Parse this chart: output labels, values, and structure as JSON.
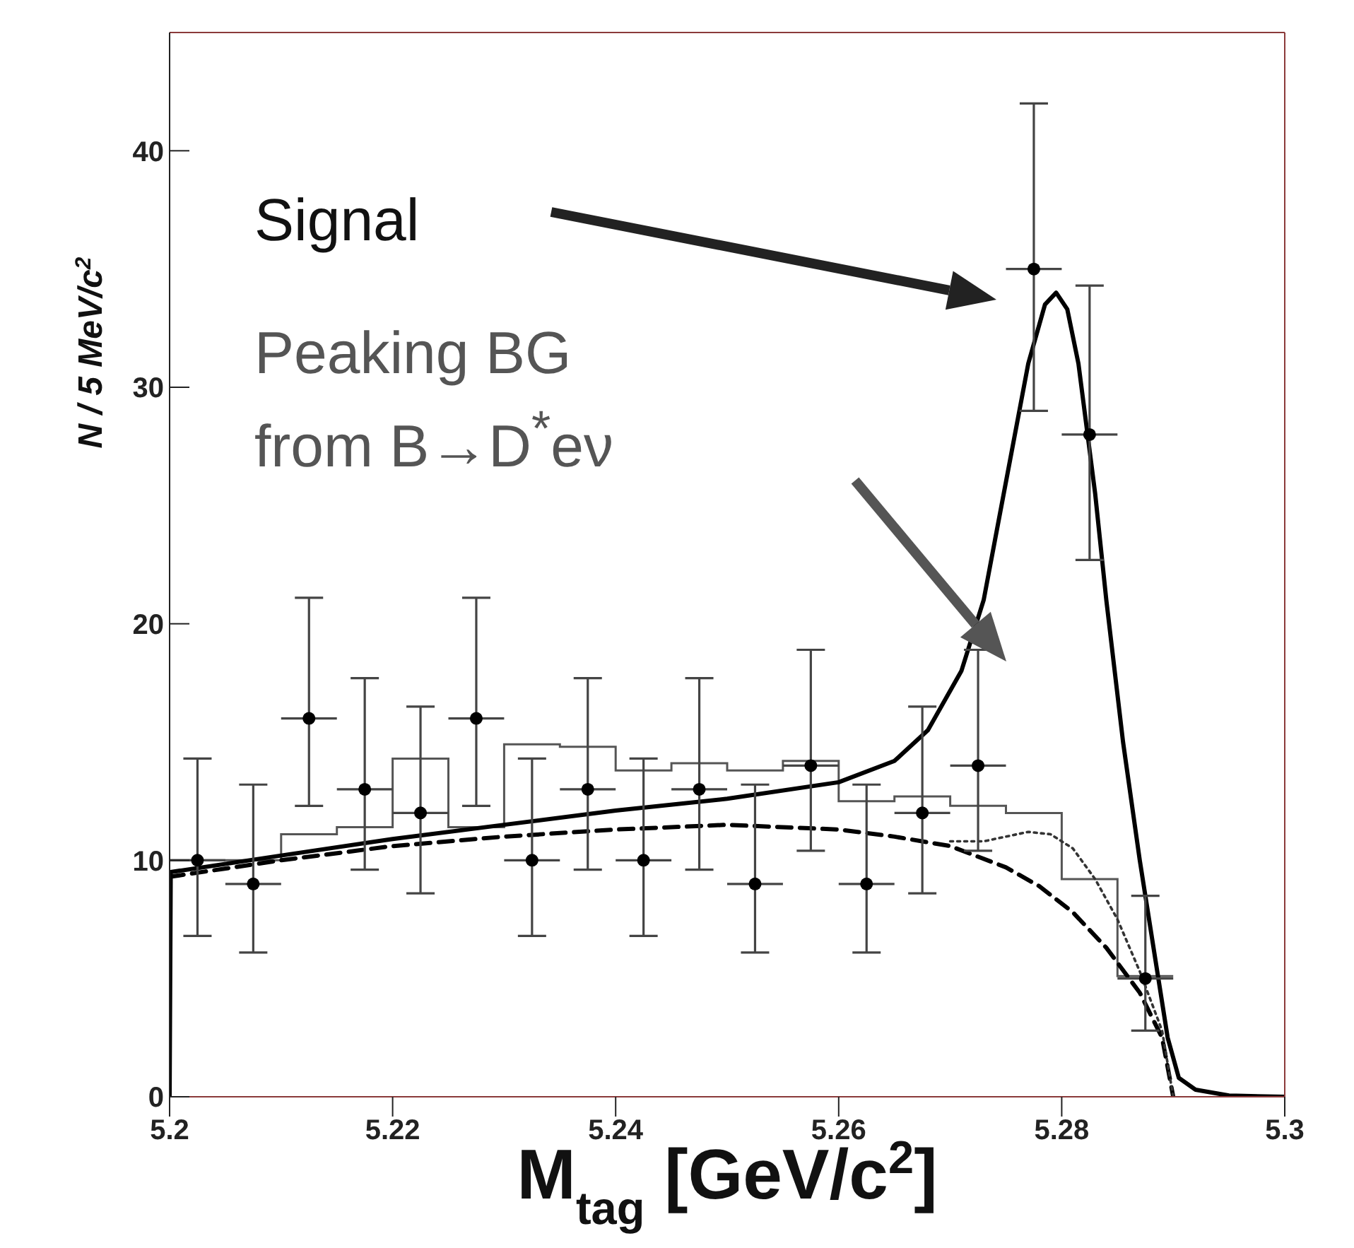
{
  "chart_data": {
    "type": "scatter",
    "xlabel": "M$_{tag}$ [GeV/c$^{2}$]",
    "ylabel": "N / 5 MeV/c$^{2}$",
    "xlim": [
      5.2,
      5.3
    ],
    "xticks": [
      5.2,
      5.22,
      5.24,
      5.26,
      5.28,
      5.3
    ],
    "ylim": [
      0,
      45
    ],
    "yticks": [
      0,
      10,
      20,
      30,
      40
    ],
    "grid": false,
    "annotations": [
      "Signal",
      "Peaking BG from B→D$^{*}$eν"
    ],
    "series": [
      {
        "type": "histogram",
        "color": "#555555",
        "bins": [
          5.2,
          5.205,
          5.21,
          5.215,
          5.22,
          5.225,
          5.23,
          5.235,
          5.24,
          5.245,
          5.25,
          5.255,
          5.26,
          5.265,
          5.27,
          5.275,
          5.28,
          5.285,
          5.29
        ],
        "values": [
          10,
          10,
          11.1,
          11.4,
          14.3,
          11.4,
          14.9,
          14.8,
          13.8,
          14.1,
          13.8,
          14.2,
          12.5,
          12.7,
          12.3,
          12,
          9.2,
          5.1
        ]
      },
      {
        "type": "line",
        "color": "#000000",
        "line_style": "solid",
        "x": [
          5.2,
          5.2001,
          5.21,
          5.22,
          5.23,
          5.24,
          5.25,
          5.26,
          5.265,
          5.268,
          5.271,
          5.273,
          5.275,
          5.277,
          5.2785,
          5.2795,
          5.2805,
          5.2815,
          5.283,
          5.284,
          5.2855,
          5.287,
          5.2885,
          5.2895,
          5.2905,
          5.292,
          5.295,
          5.3
        ],
        "values": [
          0,
          9.5,
          10.2,
          10.9,
          11.5,
          12.1,
          12.6,
          13.3,
          14.2,
          15.5,
          18,
          21,
          26,
          31,
          33.5,
          34,
          33.3,
          31,
          25.5,
          21,
          15,
          10,
          5.5,
          2.5,
          0.8,
          0.3,
          0.05,
          0
        ]
      },
      {
        "type": "line",
        "color": "#000000",
        "line_style": "dashed",
        "x": [
          5.2,
          5.21,
          5.22,
          5.23,
          5.24,
          5.25,
          5.26,
          5.265,
          5.27,
          5.275,
          5.278,
          5.281,
          5.284,
          5.287,
          5.289,
          5.29
        ],
        "values": [
          9.3,
          10,
          10.6,
          11,
          11.3,
          11.5,
          11.3,
          11,
          10.6,
          9.7,
          8.9,
          7.8,
          6.3,
          4.4,
          2.5,
          0
        ]
      },
      {
        "type": "line",
        "color": "#333333",
        "line_style": "dotted",
        "x": [
          5.27,
          5.273,
          5.275,
          5.277,
          5.279,
          5.281,
          5.283,
          5.285,
          5.287,
          5.289,
          5.29
        ],
        "values": [
          10.8,
          10.8,
          11,
          11.2,
          11.1,
          10.5,
          9.2,
          7.5,
          5.3,
          2.8,
          0
        ]
      },
      {
        "color": "#000000",
        "marker": "circle",
        "x": [
          5.2025,
          5.2075,
          5.2125,
          5.2175,
          5.2225,
          5.2275,
          5.2325,
          5.2375,
          5.2425,
          5.2475,
          5.2525,
          5.2575,
          5.2625,
          5.2675,
          5.2725,
          5.2775,
          5.2825,
          5.2875
        ],
        "values": [
          10,
          9,
          16,
          13,
          12,
          16,
          10,
          13,
          10,
          13,
          9,
          14,
          9,
          12,
          14,
          35,
          28,
          5
        ],
        "errors": [
          [
            6.8,
            14.3
          ],
          [
            6.1,
            13.2
          ],
          [
            12.3,
            21.1
          ],
          [
            9.6,
            17.7
          ],
          [
            8.6,
            16.5
          ],
          [
            12.3,
            21.1
          ],
          [
            6.8,
            14.3
          ],
          [
            9.6,
            17.7
          ],
          [
            6.8,
            14.3
          ],
          [
            9.6,
            17.7
          ],
          [
            6.1,
            13.2
          ],
          [
            10.4,
            18.9
          ],
          [
            6.1,
            13.2
          ],
          [
            8.6,
            16.5
          ],
          [
            10.4,
            18.9
          ],
          [
            29,
            42
          ],
          [
            22.7,
            34.3
          ],
          [
            2.8,
            8.5
          ]
        ],
        "xerrors": [
          0.0025,
          0.0025,
          0.0025,
          0.0025,
          0.0025,
          0.0025,
          0.0025,
          0.0025,
          0.0025,
          0.0025,
          0.0025,
          0.0025,
          0.0025,
          0.0025,
          0.0025,
          0.0025,
          0.0025,
          0.0025
        ]
      }
    ]
  }
}
